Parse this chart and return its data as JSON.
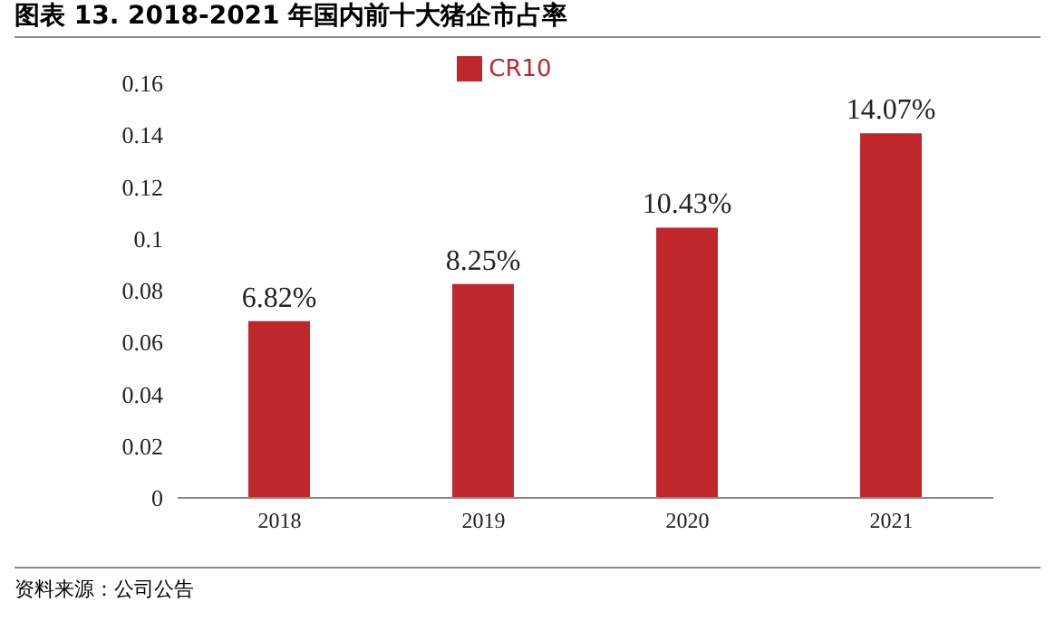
{
  "chart_data": {
    "type": "bar",
    "title": "图表 13. 2018-2021 年国内前十大猪企市占率",
    "categories": [
      "2018",
      "2019",
      "2020",
      "2021"
    ],
    "series": [
      {
        "name": "CR10",
        "color": "#c0272d",
        "values": [
          0.0682,
          0.0825,
          0.1043,
          0.1407
        ],
        "value_labels": [
          "6.82%",
          "8.25%",
          "10.43%",
          "14.07%"
        ]
      }
    ],
    "ylim": [
      0,
      0.16
    ],
    "yticks": [
      0,
      0.02,
      0.04,
      0.06,
      0.08,
      0.1,
      0.12,
      0.14,
      0.16
    ],
    "grid": false,
    "legend": "top",
    "annotations": [
      "资料来源：公司公告"
    ]
  }
}
